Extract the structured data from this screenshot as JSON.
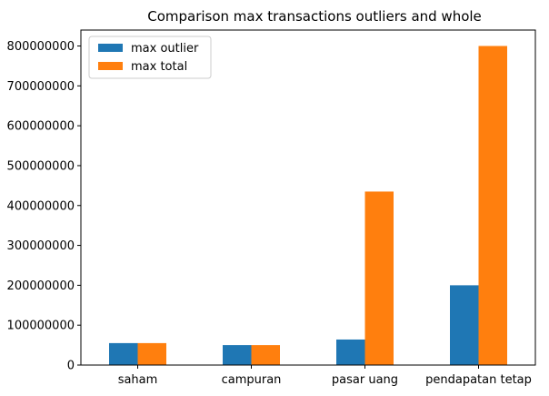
{
  "chart_data": {
    "type": "bar",
    "title": "Comparison max transactions outliers and whole",
    "xlabel": "",
    "ylabel": "",
    "categories": [
      "saham",
      "campuran",
      "pasar uang",
      "pendapatan tetap"
    ],
    "series": [
      {
        "name": "max outlier",
        "color": "#1f77b4",
        "values": [
          55000000,
          50000000,
          64000000,
          200000000
        ]
      },
      {
        "name": "max total",
        "color": "#ff7f0e",
        "values": [
          55000000,
          50000000,
          435000000,
          800000000
        ]
      }
    ],
    "ylim": [
      0,
      840000000
    ],
    "yticks": [
      0,
      100000000,
      200000000,
      300000000,
      400000000,
      500000000,
      600000000,
      700000000,
      800000000
    ],
    "ytick_labels": [
      "0",
      "100000000",
      "200000000",
      "300000000",
      "400000000",
      "500000000",
      "600000000",
      "700000000",
      "800000000"
    ],
    "grid": false,
    "legend_position": "top-left"
  }
}
